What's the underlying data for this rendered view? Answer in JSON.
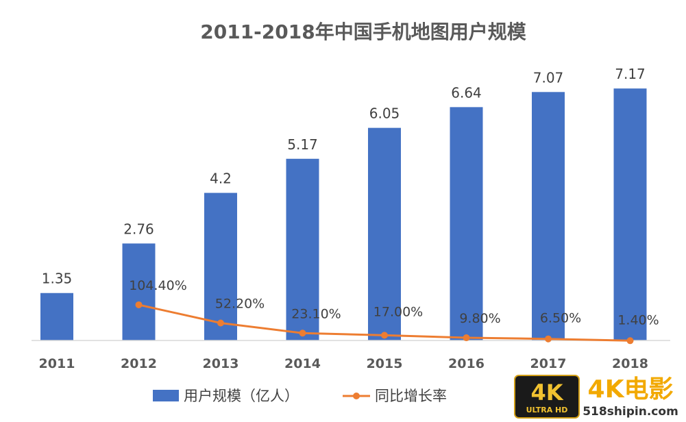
{
  "chart_data": {
    "type": "bar",
    "title": "2011-2018年中国手机地图用户规模",
    "categories": [
      "2011",
      "2012",
      "2013",
      "2014",
      "2015",
      "2016",
      "2017",
      "2018"
    ],
    "series": [
      {
        "name": "用户规模（亿人）",
        "type": "bar",
        "values": [
          1.35,
          2.76,
          4.2,
          5.17,
          6.05,
          6.64,
          7.07,
          7.17
        ],
        "labels": [
          "1.35",
          "2.76",
          "4.2",
          "5.17",
          "6.05",
          "6.64",
          "7.07",
          "7.17"
        ],
        "color": "#4472C4"
      },
      {
        "name": "同比增长率",
        "type": "line",
        "values": [
          null,
          104.4,
          52.2,
          23.1,
          17.0,
          9.8,
          6.5,
          1.4
        ],
        "labels": [
          "",
          "104.40%",
          "52.20%",
          "23.10%",
          "17.00%",
          "9.80%",
          "6.50%",
          "1.40%"
        ],
        "color": "#ED7D31"
      }
    ],
    "legend_position": "bottom",
    "grid": false
  },
  "watermark": {
    "badge_main": "4K",
    "badge_sub": "ULTRA HD",
    "brand": "4K电影",
    "site": "518shipin.com"
  }
}
